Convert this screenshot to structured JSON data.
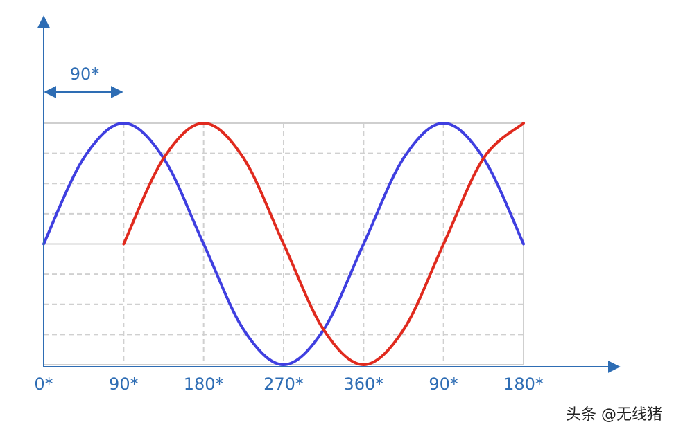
{
  "chart_data": {
    "type": "line",
    "categories": [
      "0*",
      null,
      "90*",
      null,
      "180*",
      null,
      "270*",
      null,
      "360*",
      null,
      "90*",
      null,
      "180*"
    ],
    "series": [
      {
        "color": "#3f3fe0",
        "values": [
          0,
          0.71,
          1,
          0.71,
          0,
          -0.71,
          -1,
          -0.71,
          0,
          0.71,
          1,
          0.71,
          0
        ]
      },
      {
        "color": "#e02a1e",
        "values": [
          null,
          null,
          0,
          0.71,
          1,
          0.71,
          0,
          -0.71,
          -1,
          -0.71,
          0,
          0.71,
          1
        ]
      }
    ],
    "ylim": [
      -1,
      1
    ],
    "yticks": [
      -1,
      -0.75,
      -0.5,
      -0.25,
      0,
      0.25,
      0.5,
      0.75,
      1
    ],
    "grid": true,
    "annotation": "90*",
    "watermark": "头条 @无线猪"
  }
}
